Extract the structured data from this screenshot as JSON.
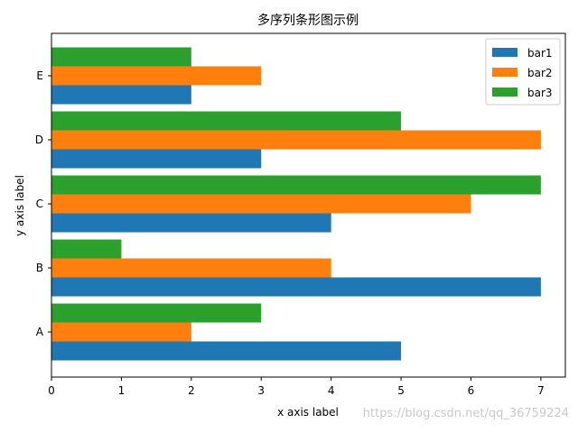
{
  "chart_data": {
    "type": "bar",
    "orientation": "horizontal",
    "title": "多序列条形图示例",
    "xlabel": "x axis label",
    "ylabel": "y axis label",
    "categories": [
      "A",
      "B",
      "C",
      "D",
      "E"
    ],
    "xlim": [
      0,
      7.35
    ],
    "xticks": [
      0,
      1,
      2,
      3,
      4,
      5,
      6,
      7
    ],
    "grid": false,
    "legend_position": "top-right",
    "series": [
      {
        "name": "bar1",
        "color": "#1f77b4",
        "values": [
          5,
          7,
          4,
          3,
          2
        ]
      },
      {
        "name": "bar2",
        "color": "#ff7f0e",
        "values": [
          2,
          4,
          6,
          7,
          3
        ]
      },
      {
        "name": "bar3",
        "color": "#2ca02c",
        "values": [
          3,
          1,
          7,
          5,
          2
        ]
      }
    ]
  },
  "watermark": "https://blog.csdn.net/qq_36759224"
}
